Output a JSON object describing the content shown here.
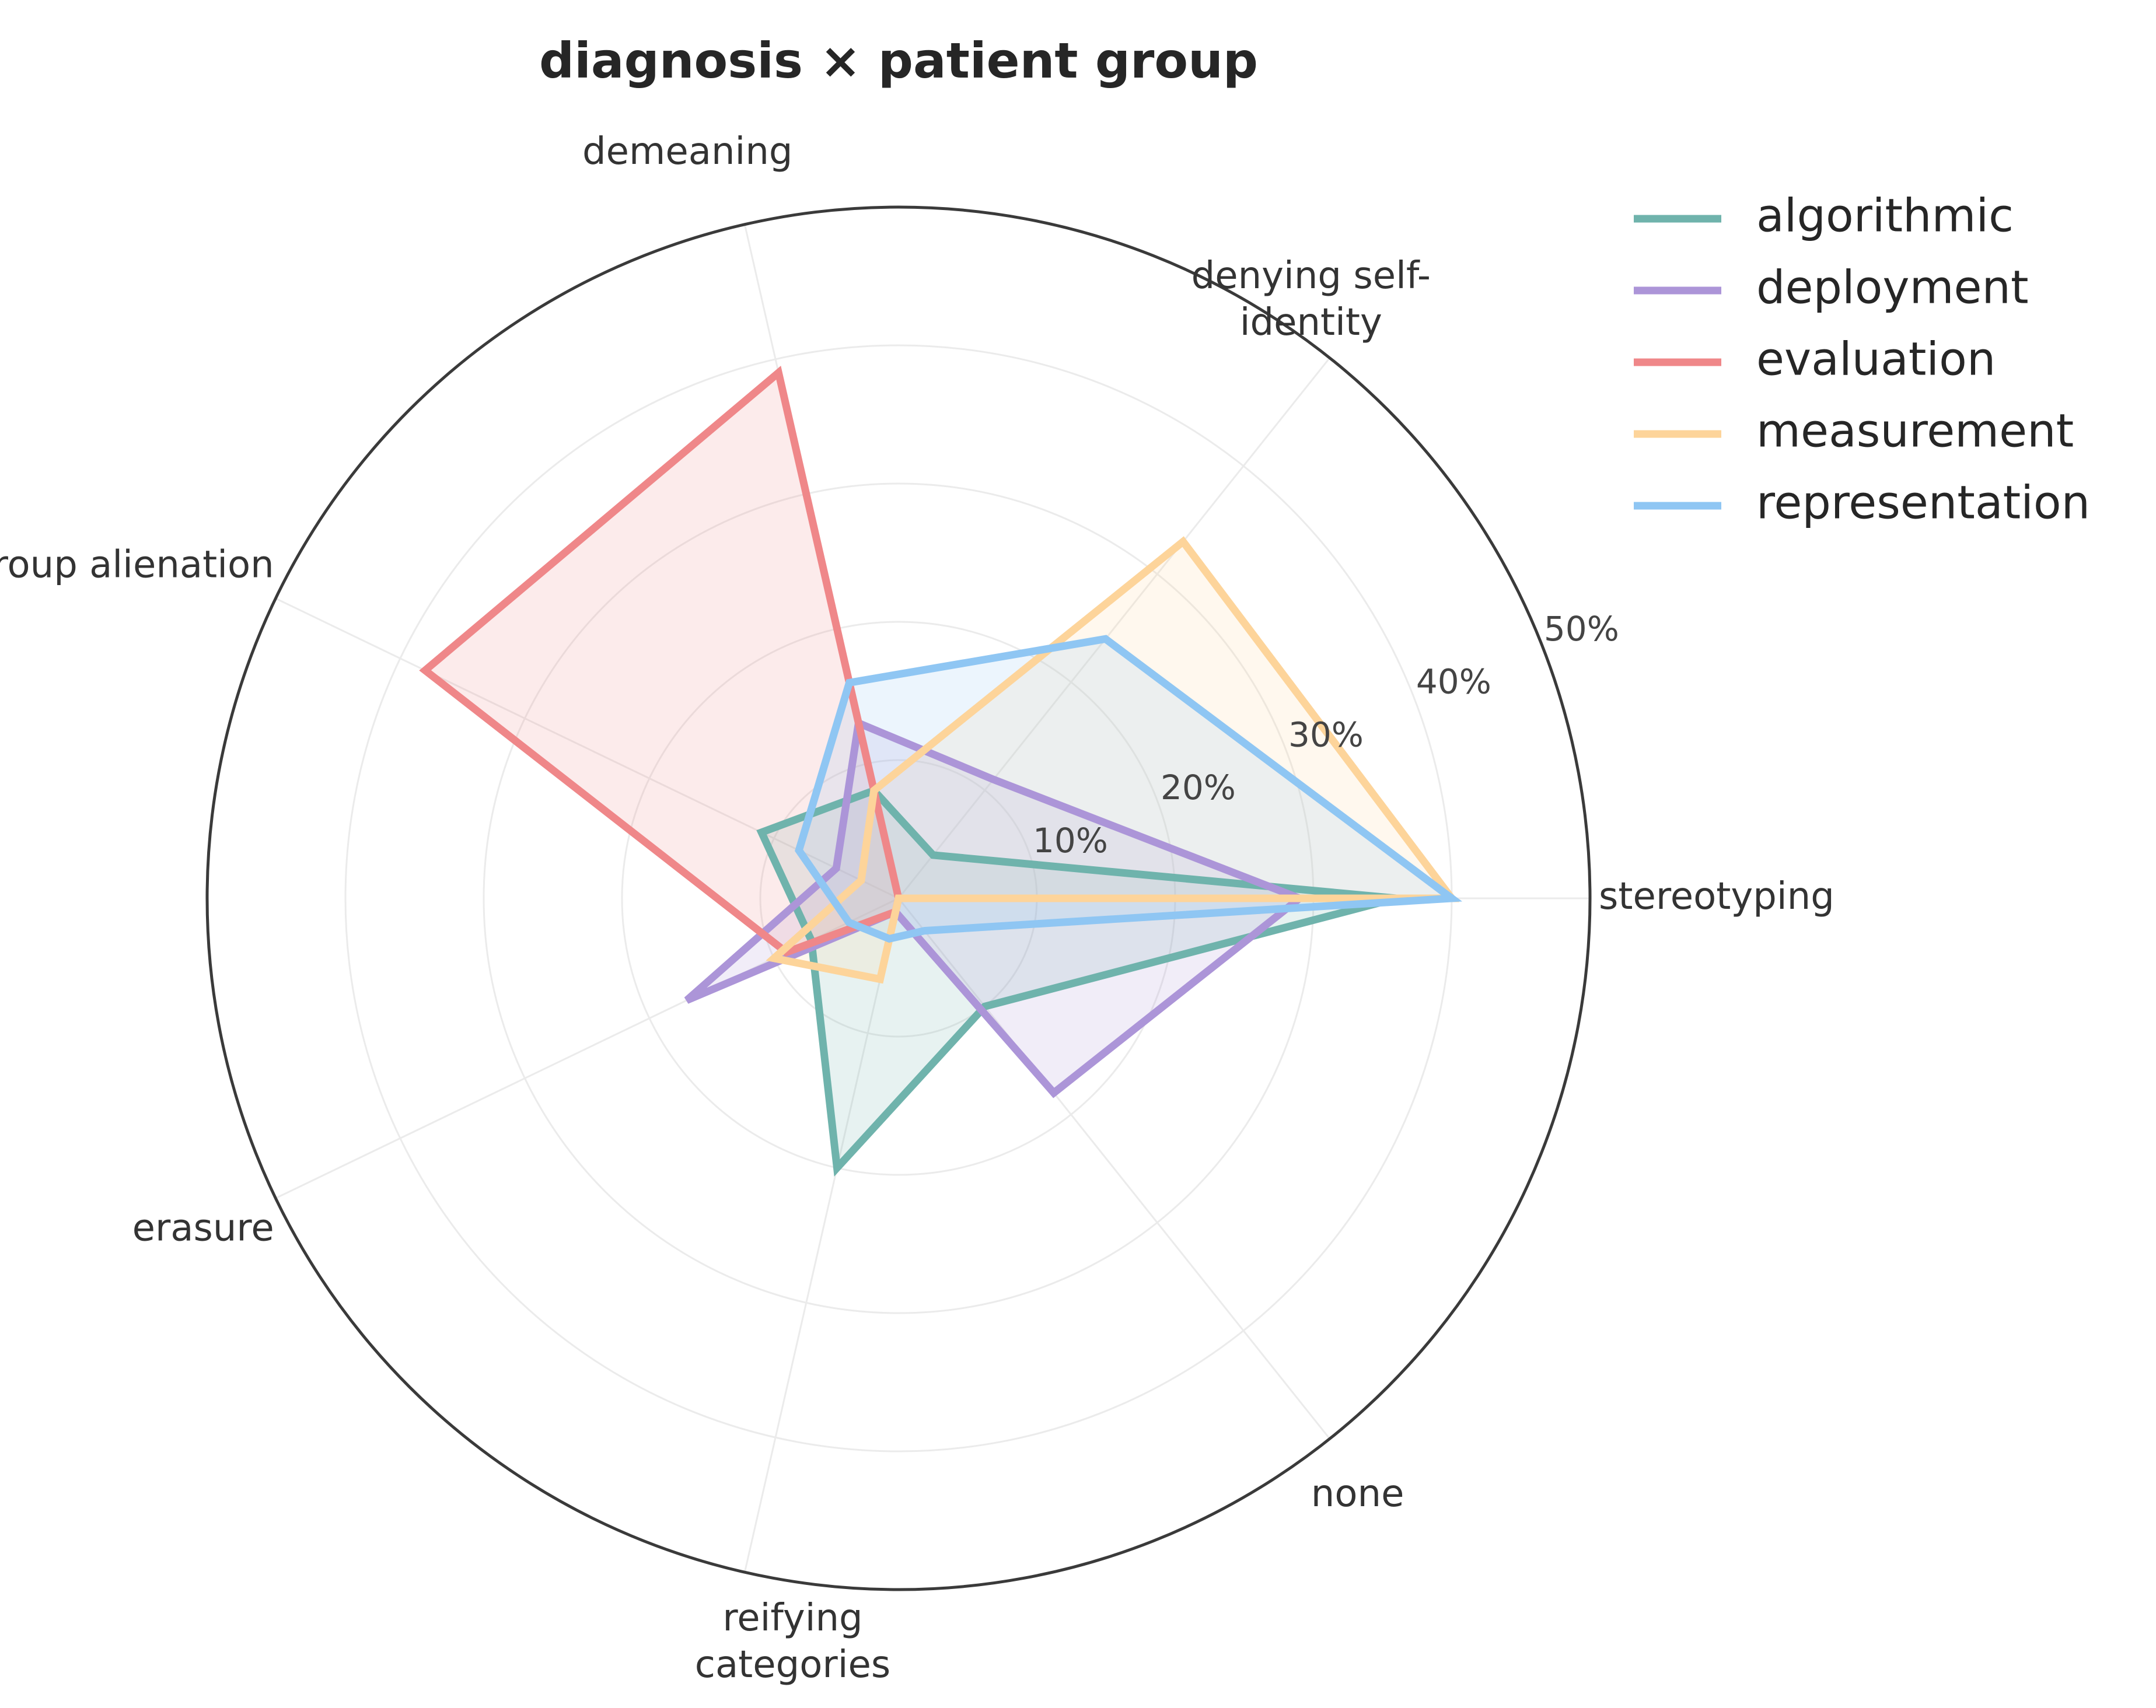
{
  "chart_data": {
    "type": "radar",
    "title": "diagnosis × patient group",
    "axes": [
      "stereotyping",
      "denying self-identity",
      "demeaning",
      "group alienation",
      "erasure",
      "reifying categories",
      "none"
    ],
    "rlim": [
      0,
      50
    ],
    "rticks": [
      10,
      20,
      30,
      40,
      50
    ],
    "rtick_labels": [
      "10%",
      "20%",
      "30%",
      "40%",
      "50%"
    ],
    "grid": true,
    "legend_position": "top-right",
    "series": [
      {
        "name": "algorithmic",
        "color": "#6fb3ac",
        "values": [
          36,
          4,
          8,
          11,
          7,
          20,
          10
        ]
      },
      {
        "name": "deployment",
        "color": "#ac95d8",
        "values": [
          29,
          11,
          13,
          5,
          17,
          1,
          18
        ]
      },
      {
        "name": "evaluation",
        "color": "#ef8789",
        "values": [
          4,
          0,
          39,
          38,
          9,
          1,
          0
        ]
      },
      {
        "name": "measurement",
        "color": "#fdd49a",
        "values": [
          40,
          33,
          8,
          3,
          10,
          6,
          0
        ]
      },
      {
        "name": "representation",
        "color": "#8fc6f3",
        "values": [
          40,
          24,
          16,
          8,
          4,
          3,
          3
        ]
      }
    ]
  }
}
